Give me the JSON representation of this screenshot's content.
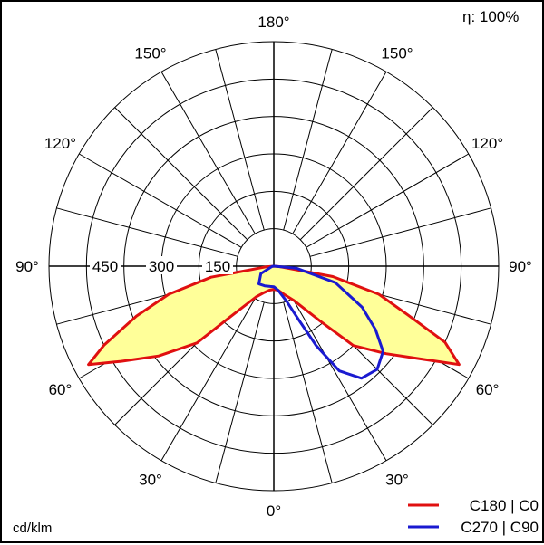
{
  "chart_data": {
    "type": "polar",
    "title": "",
    "efficiency_label": "η: 100%",
    "unit_label": "cd/klm",
    "radial_ticks": [
      150,
      300,
      450
    ],
    "r_max": 600,
    "angle_labels": {
      "top": "180°",
      "upper": "150°",
      "upper_mid": "120°",
      "side": "90°",
      "lower_mid": "60°",
      "lower": "30°",
      "bottom": "0°"
    },
    "colors": {
      "c0": "#e01010",
      "c90": "#1a1ad0",
      "fill": "#ffff99",
      "grid": "#000000"
    },
    "series": [
      {
        "name": "C180 | C0",
        "color": "#e01010",
        "points": [
          {
            "gamma": -180,
            "cd": 0
          },
          {
            "gamma": -90,
            "cd": 0
          },
          {
            "gamma": -85,
            "cd": 20
          },
          {
            "gamma": -80,
            "cd": 170
          },
          {
            "gamma": -75,
            "cd": 290
          },
          {
            "gamma": -70,
            "cd": 390
          },
          {
            "gamma": -65,
            "cd": 500
          },
          {
            "gamma": -62,
            "cd": 560
          },
          {
            "gamma": -58,
            "cd": 480
          },
          {
            "gamma": -52,
            "cd": 390
          },
          {
            "gamma": -45,
            "cd": 290
          },
          {
            "gamma": -40,
            "cd": 170
          },
          {
            "gamma": -30,
            "cd": 95
          },
          {
            "gamma": -20,
            "cd": 75
          },
          {
            "gamma": -10,
            "cd": 65
          },
          {
            "gamma": 0,
            "cd": 62
          },
          {
            "gamma": 10,
            "cd": 65
          },
          {
            "gamma": 20,
            "cd": 80
          },
          {
            "gamma": 30,
            "cd": 105
          },
          {
            "gamma": 40,
            "cd": 190
          },
          {
            "gamma": 45,
            "cd": 300
          },
          {
            "gamma": 52,
            "cd": 380
          },
          {
            "gamma": 58,
            "cd": 470
          },
          {
            "gamma": 62,
            "cd": 560
          },
          {
            "gamma": 66,
            "cd": 500
          },
          {
            "gamma": 70,
            "cd": 380
          },
          {
            "gamma": 75,
            "cd": 290
          },
          {
            "gamma": 80,
            "cd": 160
          },
          {
            "gamma": 85,
            "cd": 15
          },
          {
            "gamma": 90,
            "cd": 0
          },
          {
            "gamma": 180,
            "cd": 0
          }
        ]
      },
      {
        "name": "C270 | C90",
        "color": "#1a1ad0",
        "points": [
          {
            "gamma": -180,
            "cd": 0
          },
          {
            "gamma": -90,
            "cd": 0
          },
          {
            "gamma": -80,
            "cd": 5
          },
          {
            "gamma": -60,
            "cd": 40
          },
          {
            "gamma": -40,
            "cd": 62
          },
          {
            "gamma": -25,
            "cd": 58
          },
          {
            "gamma": -10,
            "cd": 55
          },
          {
            "gamma": 0,
            "cd": 55
          },
          {
            "gamma": 10,
            "cd": 65
          },
          {
            "gamma": 20,
            "cd": 100
          },
          {
            "gamma": 25,
            "cd": 160
          },
          {
            "gamma": 28,
            "cd": 240
          },
          {
            "gamma": 32,
            "cd": 330
          },
          {
            "gamma": 38,
            "cd": 380
          },
          {
            "gamma": 45,
            "cd": 390
          },
          {
            "gamma": 52,
            "cd": 370
          },
          {
            "gamma": 58,
            "cd": 320
          },
          {
            "gamma": 65,
            "cd": 260
          },
          {
            "gamma": 75,
            "cd": 170
          },
          {
            "gamma": 85,
            "cd": 60
          },
          {
            "gamma": 90,
            "cd": 0
          },
          {
            "gamma": 180,
            "cd": 0
          }
        ]
      }
    ],
    "legend": [
      "C180 | C0",
      "C270 | C90"
    ],
    "legend_position": "bottom-right"
  }
}
